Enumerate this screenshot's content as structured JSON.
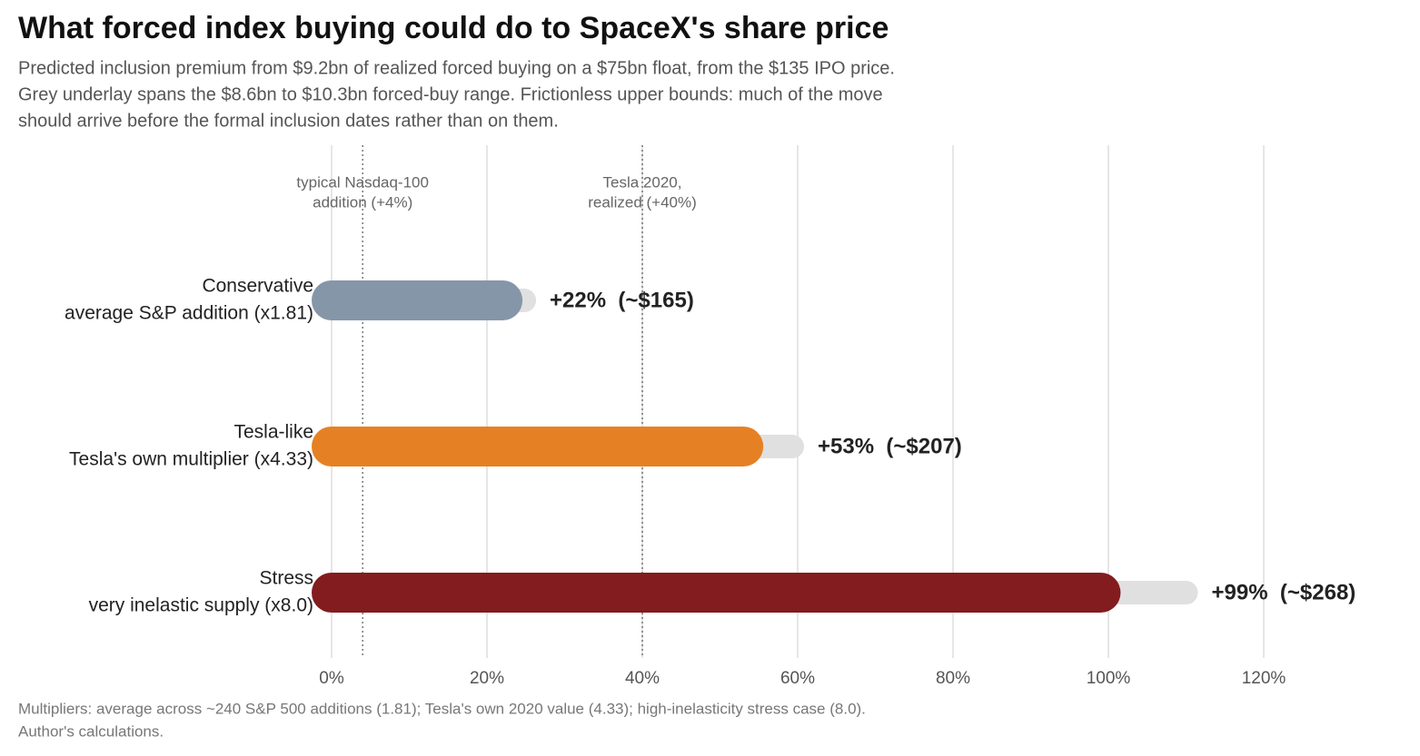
{
  "chart_data": {
    "type": "range_bar",
    "title": "What forced index buying could do to SpaceX's share price",
    "subtitle": [
      "Predicted inclusion premium from $9.2bn of realized forced buying on a $75bn float, from the $135 IPO price.",
      "Grey underlay spans the $8.6bn to $10.3bn forced-buy range. Frictionless upper bounds: much of the move",
      "should arrive before the formal inclusion dates rather than on them."
    ],
    "categories": [
      "Conservative",
      "Tesla-like",
      "Stress"
    ],
    "descriptions": [
      "average S&P addition (x1.81)",
      "Tesla's own multiplier (x4.33)",
      "very inelastic supply (x8.0)"
    ],
    "values": [
      22,
      53,
      99
    ],
    "value_labels": [
      "+22%  (~$165)",
      "+53%  (~$207)",
      "+99%  (~$268)"
    ],
    "colors": [
      "#8596a8",
      "#e58124",
      "#821c1e"
    ],
    "range_low": [
      20.5,
      49.5,
      92.5
    ],
    "range_high": [
      24.8,
      59.3,
      110
    ],
    "range_color": "#e0e0e0",
    "xlim": [
      -3,
      136
    ],
    "xticks": [
      {
        "value": 0,
        "label": "0%"
      },
      {
        "value": 20,
        "label": "20%"
      },
      {
        "value": 40,
        "label": "40%"
      },
      {
        "value": 60,
        "label": "60%"
      },
      {
        "value": 80,
        "label": "80%"
      },
      {
        "value": 100,
        "label": "100%"
      },
      {
        "value": 120,
        "label": "120%"
      }
    ],
    "grid": true,
    "reference_lines": [
      {
        "value": 4,
        "label": [
          "typical Nasdaq-100",
          "addition (+4%)"
        ]
      },
      {
        "value": 40,
        "label": [
          "Tesla 2020,",
          "realized (+40%)"
        ]
      }
    ],
    "footnote": [
      "Multipliers: average across ~240 S&P 500 additions (1.81); Tesla's own 2020 value (4.33); high-inelasticity stress case (8.0).",
      "Author's calculations."
    ]
  }
}
